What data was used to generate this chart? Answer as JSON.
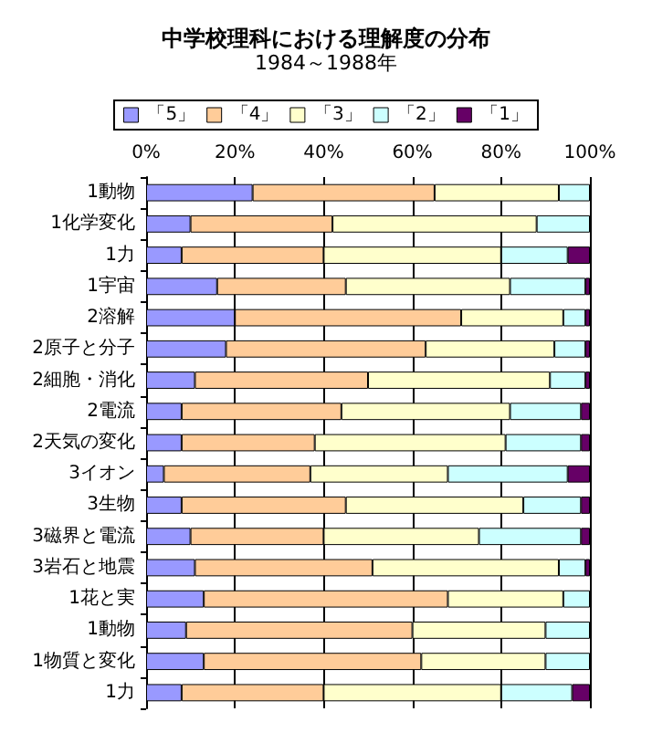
{
  "chart_data": {
    "type": "bar",
    "orientation": "horizontal",
    "stacked": true,
    "title": "中学校理科における理解度の分布",
    "subtitle": "1984～1988年",
    "categories": [
      "1動物",
      "1化学変化",
      "1力",
      "1宇宙",
      "2溶解",
      "2原子と分子",
      "2細胞・消化",
      "2電流",
      "2天気の変化",
      "3イオン",
      "3生物",
      "3磁界と電流",
      "3岩石と地震",
      "1花と実",
      "1動物",
      "1物質と変化",
      "1力"
    ],
    "series": [
      {
        "name": "「5」",
        "color": "#9999ff",
        "values": [
          24,
          10,
          8,
          16,
          20,
          18,
          11,
          8,
          8,
          4,
          8,
          10,
          11,
          13,
          9,
          13,
          8
        ]
      },
      {
        "name": "「4」",
        "color": "#ffcc99",
        "values": [
          41,
          32,
          32,
          29,
          51,
          45,
          39,
          36,
          30,
          33,
          37,
          30,
          40,
          55,
          51,
          49,
          32
        ]
      },
      {
        "name": "「3」",
        "color": "#ffffcc",
        "values": [
          28,
          46,
          40,
          37,
          23,
          29,
          41,
          38,
          43,
          31,
          40,
          35,
          42,
          26,
          30,
          28,
          40
        ]
      },
      {
        "name": "「2」",
        "color": "#ccffff",
        "values": [
          7,
          12,
          15,
          17,
          5,
          7,
          8,
          16,
          17,
          27,
          13,
          23,
          6,
          6,
          10,
          10,
          16
        ]
      },
      {
        "name": "「1」",
        "color": "#660066",
        "values": [
          0,
          0,
          5,
          1,
          1,
          1,
          1,
          2,
          2,
          5,
          2,
          2,
          1,
          0,
          0,
          0,
          4
        ]
      }
    ],
    "xlim": [
      0,
      100
    ],
    "xticks": [
      {
        "value": 0,
        "label": "0%"
      },
      {
        "value": 20,
        "label": "20%"
      },
      {
        "value": 40,
        "label": "40%"
      },
      {
        "value": 60,
        "label": "60%"
      },
      {
        "value": 80,
        "label": "80%"
      },
      {
        "value": 100,
        "label": "100%"
      }
    ],
    "grid": "x",
    "legend": "top"
  }
}
